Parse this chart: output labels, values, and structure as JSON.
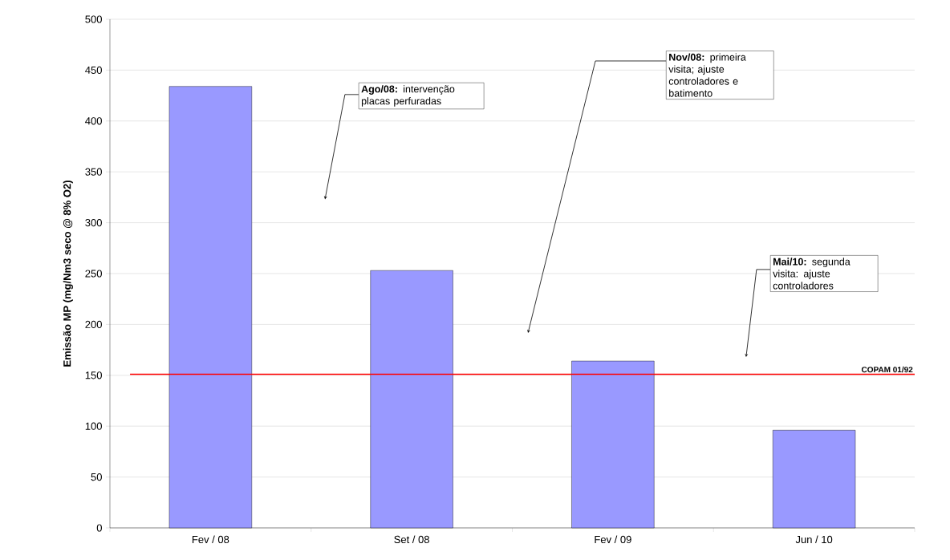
{
  "chart_data": {
    "type": "bar",
    "ylabel": "Emissão MP (mg/Nm3 seco @ 8% O2)",
    "categories": [
      "Fev / 08",
      "Set / 08",
      "Fev / 09",
      "Jun / 10"
    ],
    "values": [
      434,
      253,
      164,
      96
    ],
    "color": "#9999ff",
    "ylim": [
      0,
      500
    ],
    "yticks": [
      0,
      50,
      100,
      150,
      200,
      250,
      300,
      350,
      400,
      450,
      500
    ],
    "grid": "y",
    "ref_lines": [
      {
        "axis": "y",
        "value": 151,
        "label": "COPAM 01/92",
        "color": "#ff0000"
      }
    ],
    "annotations": [
      "**Ago/08:** intervenção placas perfuradas",
      "**Nov/08:** primeira visita; ajuste controladores e batimento",
      "**Mai/10:** segunda visita: ajuste controladores"
    ]
  }
}
